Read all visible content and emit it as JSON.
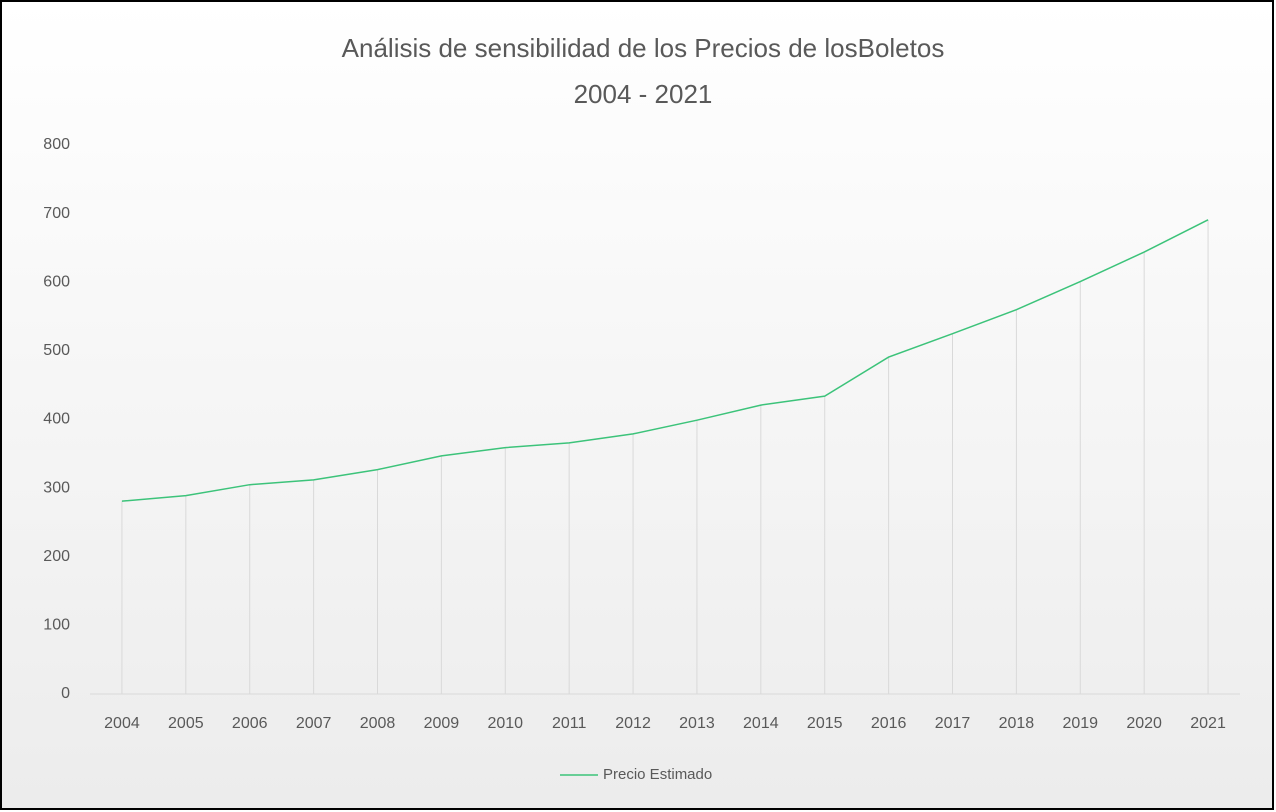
{
  "chart_data": {
    "type": "line",
    "title": [
      "Análisis de sensibilidad de los Precios de losBoletos",
      "2004 - 2021"
    ],
    "categories": [
      "2004",
      "2005",
      "2006",
      "2007",
      "2008",
      "2009",
      "2010",
      "2011",
      "2012",
      "2013",
      "2014",
      "2015",
      "2016",
      "2017",
      "2018",
      "2019",
      "2020",
      "2021"
    ],
    "series": [
      {
        "name": "Precio Estimado",
        "color": "#3cc37a",
        "values": [
          281,
          289,
          305,
          312,
          327,
          347,
          359,
          366,
          379,
          399,
          421,
          434,
          491,
          525,
          560,
          601,
          644,
          691
        ]
      }
    ],
    "ylim": [
      0,
      800
    ],
    "yticks": [
      0,
      100,
      200,
      300,
      400,
      500,
      600,
      700,
      800
    ],
    "drop_lines": true,
    "legend": "bottom"
  }
}
